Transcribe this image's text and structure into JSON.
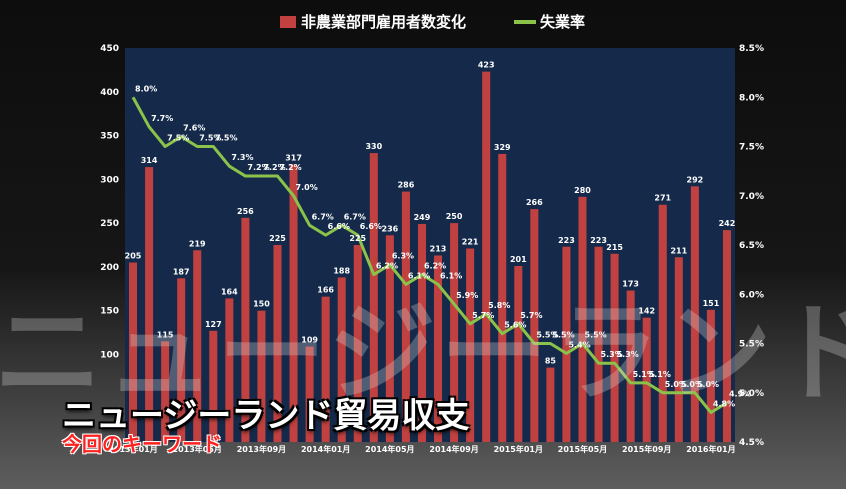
{
  "overlay": {
    "title": "ニュージーランド貿易収支",
    "subtitle": "今回のキーワード",
    "watermark": "ニュージーランド貿易収支"
  },
  "colors": {
    "bar": "#c0413f",
    "line": "#8bc34a",
    "plot_bg": "#152a4a",
    "text": "#ffffff"
  },
  "chart_data": {
    "type": "bar",
    "legend": {
      "placement": "top"
    },
    "series": [
      {
        "name": "非農業部門雇用者数変化",
        "kind": "bar",
        "axis": "left",
        "values": [
          205,
          314,
          115,
          187,
          219,
          127,
          164,
          256,
          150,
          225,
          317,
          109,
          166,
          188,
          225,
          330,
          236,
          286,
          249,
          213,
          250,
          221,
          423,
          329,
          201,
          266,
          85,
          223,
          280,
          223,
          215,
          173,
          142,
          271,
          211,
          292,
          151,
          242
        ]
      },
      {
        "name": "失業率",
        "kind": "line",
        "axis": "right",
        "values": [
          8.0,
          7.7,
          7.5,
          7.6,
          7.5,
          7.5,
          7.3,
          7.2,
          7.2,
          7.2,
          7.0,
          6.7,
          6.6,
          6.7,
          6.6,
          6.2,
          6.3,
          6.1,
          6.2,
          6.1,
          5.9,
          5.7,
          5.8,
          5.6,
          5.7,
          5.5,
          5.5,
          5.4,
          5.5,
          5.3,
          5.3,
          5.1,
          5.1,
          5.0,
          5.0,
          5.0,
          4.8,
          4.9
        ]
      }
    ],
    "x_tick_labels": [
      "2013年01月",
      "2013年05月",
      "2013年09月",
      "2014年01月",
      "2014年05月",
      "2014年09月",
      "2015年01月",
      "2015年05月",
      "2015年09月",
      "2016年01月"
    ],
    "y_left": {
      "min": 0,
      "max": 450,
      "ticks": [
        "100",
        "150",
        "200",
        "250",
        "300",
        "350",
        "400",
        "450"
      ]
    },
    "y_right": {
      "min": 4.5,
      "max": 8.5,
      "ticks": [
        "4.5%",
        "5.0%",
        "5.5%",
        "6.0%",
        "6.5%",
        "7.0%",
        "7.5%",
        "8.0%",
        "8.5%"
      ]
    },
    "grid": false
  }
}
